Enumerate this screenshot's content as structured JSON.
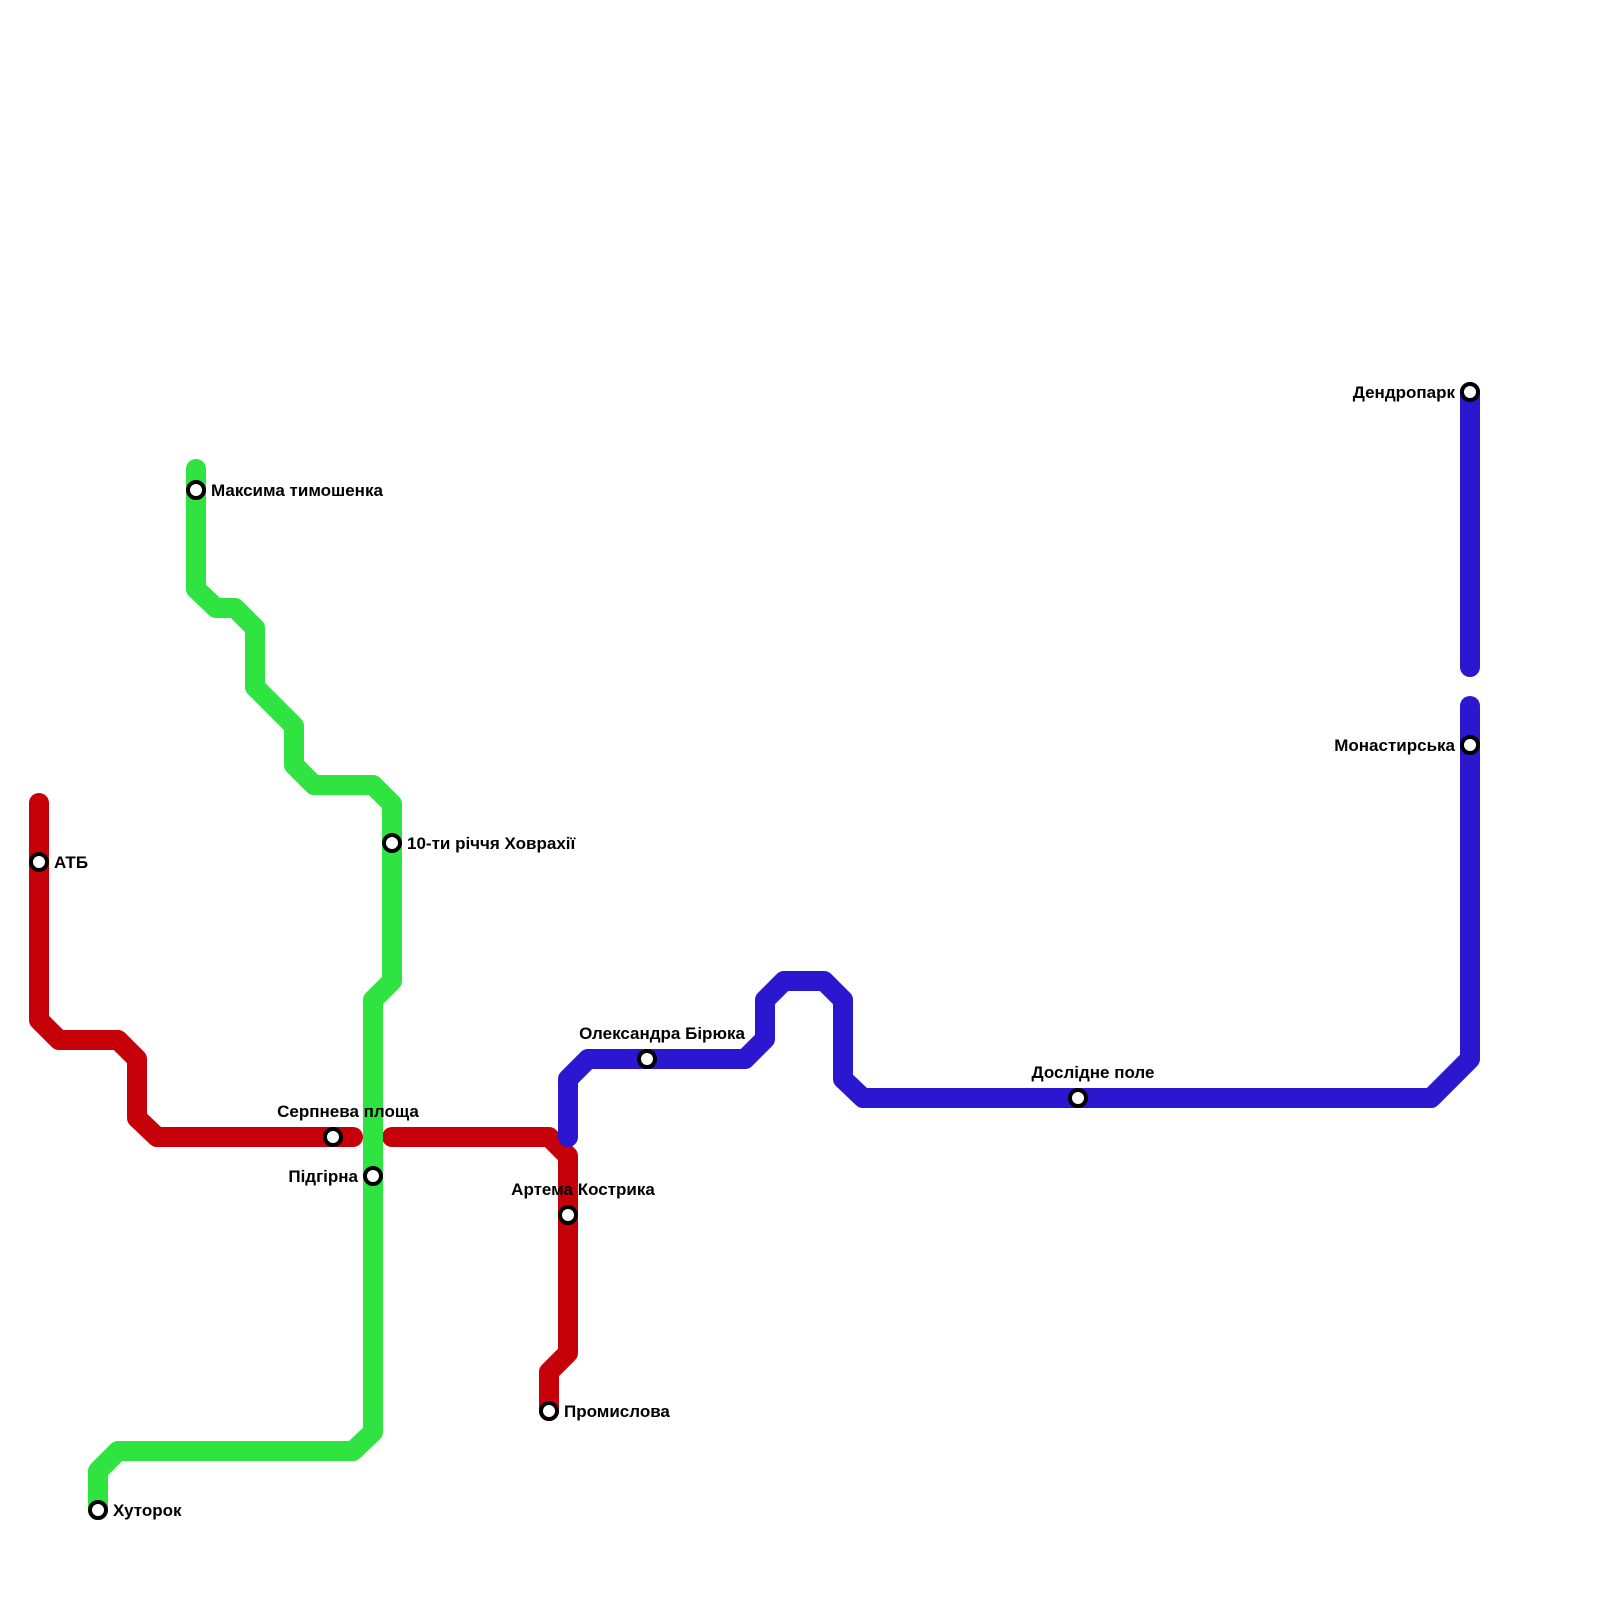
{
  "lines": [
    {
      "id": "red",
      "color": "#c60008",
      "stations": [
        "АТБ",
        "Серпнева площа",
        "Артема Кострика",
        "Промислова"
      ]
    },
    {
      "id": "green",
      "color": "#2fe340",
      "stations": [
        "Максима тимошенка",
        "10-ти річчя Ховрахії",
        "Підгірна",
        "Хуторок"
      ]
    },
    {
      "id": "blue",
      "color": "#2a17cf",
      "stations": [
        "Олександра Бірюка",
        "Дослідне поле",
        "Монастирська",
        "Дендропарк"
      ]
    }
  ],
  "station_marker": {
    "fill": "#ffffff",
    "stroke": "#000000"
  }
}
